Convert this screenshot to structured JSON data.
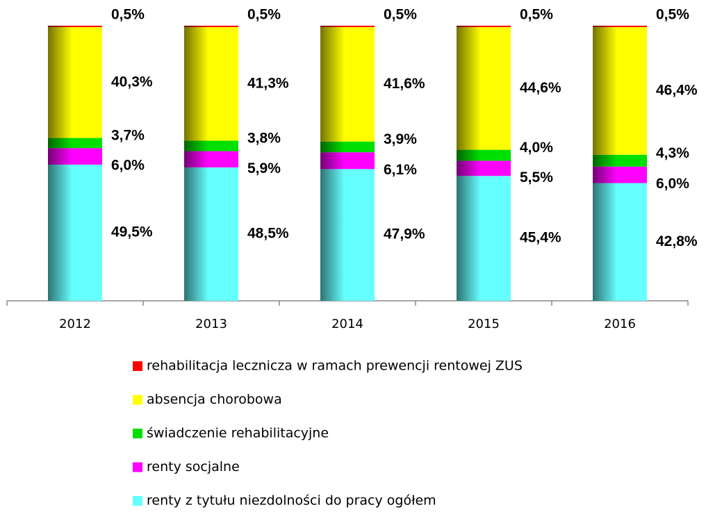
{
  "chart_data": {
    "type": "stacked_bar",
    "categories": [
      "2012",
      "2013",
      "2014",
      "2015",
      "2016"
    ],
    "ylim": [
      0,
      100
    ],
    "series": [
      {
        "name": "rehabilitacja lecznicza w ramach prewencji rentowej ZUS",
        "color": "#ff0000",
        "values": [
          0.5,
          0.5,
          0.5,
          0.5,
          0.5
        ],
        "value_labels": [
          "0,5%",
          "0,5%",
          "0,5%",
          "0,5%",
          "0,5%"
        ]
      },
      {
        "name": "absencja chorobowa",
        "color": "#ffff00",
        "values": [
          40.3,
          41.3,
          41.6,
          44.6,
          46.4
        ],
        "value_labels": [
          "40,3%",
          "41,3%",
          "41,6%",
          "44,6%",
          "46,4%"
        ]
      },
      {
        "name": "świadczenie rehabilitacyjne",
        "color": "#00e000",
        "values": [
          3.7,
          3.8,
          3.9,
          4.0,
          4.3
        ],
        "value_labels": [
          "3,7%",
          "3,8%",
          "3,9%",
          "4,0%",
          "4,3%"
        ]
      },
      {
        "name": "renty socjalne",
        "color": "#ff00ff",
        "values": [
          6.0,
          5.9,
          6.1,
          5.5,
          6.0
        ],
        "value_labels": [
          "6,0%",
          "5,9%",
          "6,1%",
          "5,5%",
          "6,0%"
        ]
      },
      {
        "name": "renty z tytułu niezdolności do pracy ogółem",
        "color": "#66ffff",
        "values": [
          49.5,
          48.5,
          47.9,
          45.4,
          42.8
        ],
        "value_labels": [
          "49,5%",
          "48,5%",
          "47,9%",
          "45,4%",
          "42,8%"
        ]
      }
    ]
  }
}
